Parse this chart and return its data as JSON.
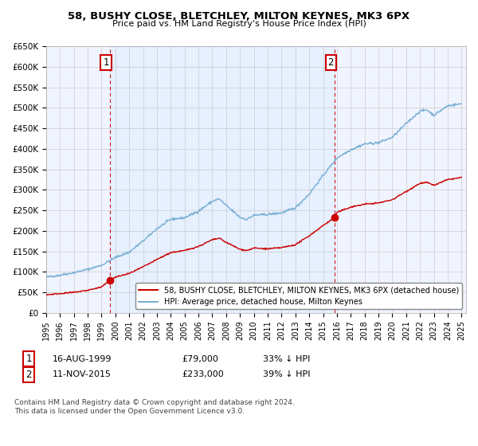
{
  "title": "58, BUSHY CLOSE, BLETCHLEY, MILTON KEYNES, MK3 6PX",
  "subtitle": "Price paid vs. HM Land Registry's House Price Index (HPI)",
  "ylim": [
    0,
    650000
  ],
  "yticks": [
    0,
    50000,
    100000,
    150000,
    200000,
    250000,
    300000,
    350000,
    400000,
    450000,
    500000,
    550000,
    600000,
    650000
  ],
  "ytick_labels": [
    "£0",
    "£50K",
    "£100K",
    "£150K",
    "£200K",
    "£250K",
    "£300K",
    "£350K",
    "£400K",
    "£450K",
    "£500K",
    "£550K",
    "£600K",
    "£650K"
  ],
  "sale1_date": 1999.62,
  "sale1_price": 79000,
  "sale1_label": "1",
  "sale2_date": 2015.86,
  "sale2_price": 233000,
  "sale2_label": "2",
  "sale_color": "#cc0000",
  "hpi_color": "#7ab0d4",
  "vline_color": "#cc0000",
  "grid_color": "#cccccc",
  "shade_color": "#ddeeff",
  "legend_sale_label": "58, BUSHY CLOSE, BLETCHLEY, MILTON KEYNES, MK3 6PX (detached house)",
  "legend_hpi_label": "HPI: Average price, detached house, Milton Keynes",
  "footnote": "Contains HM Land Registry data © Crown copyright and database right 2024.\nThis data is licensed under the Open Government Licence v3.0.",
  "bg_color": "#ffffff",
  "plot_bg_color": "#f0f4ff",
  "hpi_anchors_years": [
    1995,
    1996,
    1997,
    1998,
    1999,
    2000,
    2001,
    2002,
    2003,
    2004,
    2005,
    2006,
    2007,
    2007.5,
    2008,
    2009,
    2009.5,
    2010,
    2011,
    2012,
    2013,
    2014,
    2015,
    2016,
    2017,
    2018,
    2019,
    2020,
    2021,
    2022,
    2022.5,
    2023,
    2024,
    2025
  ],
  "hpi_anchors_vals": [
    87000,
    92000,
    98000,
    106000,
    116000,
    135000,
    148000,
    175000,
    205000,
    228000,
    232000,
    248000,
    272000,
    278000,
    262000,
    233000,
    228000,
    238000,
    240000,
    244000,
    256000,
    290000,
    335000,
    378000,
    398000,
    412000,
    415000,
    428000,
    462000,
    492000,
    495000,
    482000,
    505000,
    510000
  ],
  "sale_anchors_years": [
    1995,
    1996,
    1997,
    1998,
    1999,
    1999.62,
    2000,
    2001,
    2002,
    2003,
    2004,
    2005,
    2006,
    2007,
    2007.5,
    2008,
    2009,
    2009.5,
    2010,
    2011,
    2012,
    2013,
    2014,
    2015,
    2015.86,
    2016,
    2017,
    2018,
    2019,
    2020,
    2021,
    2022,
    2022.5,
    2023,
    2024,
    2025
  ],
  "sale_anchors_vals": [
    44000,
    47000,
    50000,
    55000,
    63000,
    79000,
    87000,
    96000,
    112000,
    130000,
    147000,
    152000,
    162000,
    178000,
    182000,
    172000,
    155000,
    152000,
    158000,
    156000,
    159000,
    166000,
    188000,
    213000,
    233000,
    245000,
    258000,
    265000,
    268000,
    276000,
    296000,
    316000,
    318000,
    311000,
    325000,
    330000
  ]
}
